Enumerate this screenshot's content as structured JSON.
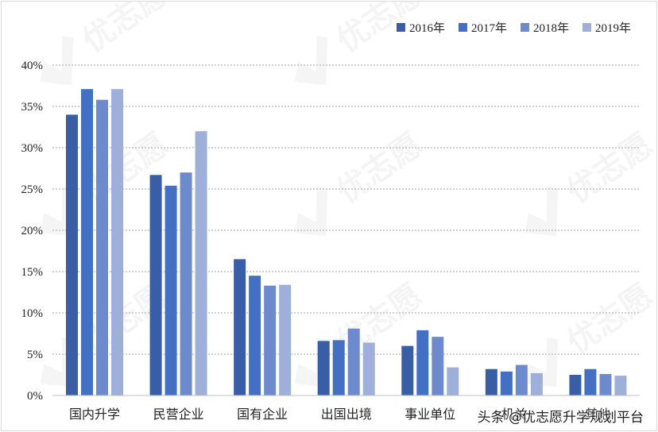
{
  "chart_data": {
    "type": "bar",
    "title": "",
    "xlabel": "",
    "ylabel": "",
    "categories": [
      "国内升学",
      "民营企业",
      "国有企业",
      "出国出境",
      "事业单位",
      "机关",
      "其他"
    ],
    "series": [
      {
        "name": "2016年",
        "color": "#3a5ea6",
        "values": [
          34.0,
          26.7,
          16.5,
          6.6,
          6.0,
          3.2,
          2.5
        ]
      },
      {
        "name": "2017年",
        "color": "#4470c4",
        "values": [
          37.1,
          25.4,
          14.5,
          6.7,
          7.9,
          2.9,
          3.2
        ]
      },
      {
        "name": "2018年",
        "color": "#6d8bcc",
        "values": [
          35.8,
          27.0,
          13.3,
          8.1,
          7.1,
          3.7,
          2.6
        ]
      },
      {
        "name": "2019年",
        "color": "#9eafd9",
        "values": [
          37.1,
          32.0,
          13.4,
          6.4,
          3.4,
          2.7,
          2.4
        ]
      }
    ],
    "ylim": [
      0,
      40
    ],
    "yticks": [
      0,
      5,
      10,
      15,
      20,
      25,
      30,
      35,
      40
    ],
    "ytick_labels": [
      "0%",
      "5%",
      "10%",
      "15%",
      "20%",
      "25%",
      "30%",
      "35%",
      "40%"
    ],
    "grid": true,
    "legend_position": "top-right"
  },
  "watermark": {
    "text": "优志愿",
    "icon": "check-badge-icon"
  },
  "footer": {
    "caption": "头条 @优志愿升学规划平台"
  }
}
